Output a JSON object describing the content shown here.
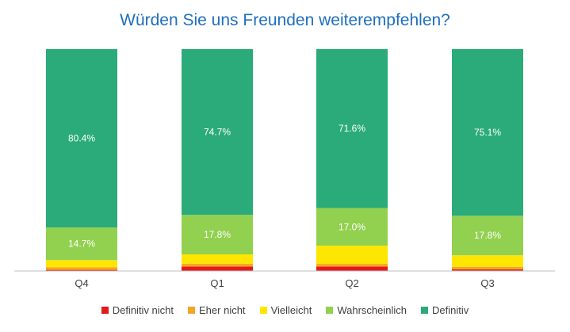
{
  "chart_data": {
    "type": "bar",
    "stacked": true,
    "title": "Würden Sie uns Freunden weiterempfehlen?",
    "categories": [
      "Q4",
      "Q1",
      "Q2",
      "Q3"
    ],
    "ylim": [
      0,
      100
    ],
    "grid": false,
    "legend_position": "bottom",
    "series": [
      {
        "name": "Definitiv nicht",
        "color": "#e31a1c",
        "values": [
          0.5,
          2.0,
          2.0,
          0.7
        ],
        "labels": [
          "",
          "",
          "",
          ""
        ]
      },
      {
        "name": "Eher nicht",
        "color": "#f5a623",
        "values": [
          1.2,
          1.3,
          1.2,
          1.2
        ],
        "labels": [
          "",
          "",
          "",
          ""
        ]
      },
      {
        "name": "Vielleicht",
        "color": "#ffe600",
        "values": [
          3.2,
          4.2,
          8.2,
          5.2
        ],
        "labels": [
          "",
          "",
          "",
          ""
        ]
      },
      {
        "name": "Wahrscheinlich",
        "color": "#92d050",
        "values": [
          14.7,
          17.8,
          17.0,
          17.8
        ],
        "labels": [
          "14.7%",
          "17.8%",
          "17.0%",
          "17.8%"
        ]
      },
      {
        "name": "Definitiv",
        "color": "#2bab7a",
        "values": [
          80.4,
          74.7,
          71.6,
          75.1
        ],
        "labels": [
          "80.4%",
          "74.7%",
          "71.6%",
          "75.1%"
        ]
      }
    ]
  }
}
